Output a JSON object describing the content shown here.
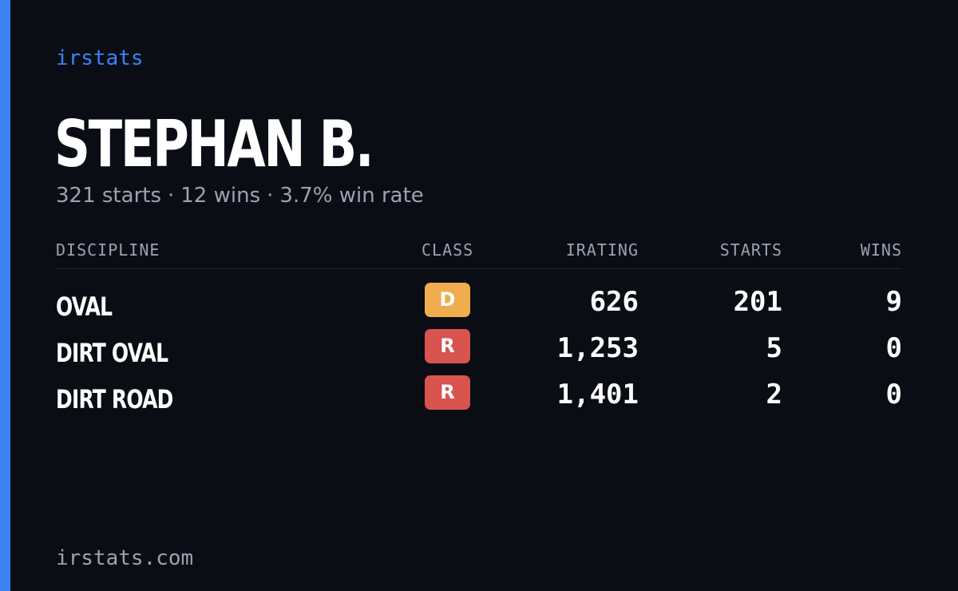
{
  "brand": "irstats",
  "player": {
    "name": "STEPHAN B.",
    "starts": "321 starts",
    "wins": "12 wins",
    "win_rate": "3.7% win rate",
    "separator": "·"
  },
  "table": {
    "headers": {
      "discipline": "DISCIPLINE",
      "class": "CLASS",
      "irating": "IRATING",
      "starts": "STARTS",
      "wins": "WINS"
    },
    "rows": [
      {
        "discipline": "OVAL",
        "class": "D",
        "class_color": "#f0ad4e",
        "irating": "626",
        "starts": "201",
        "wins": "9"
      },
      {
        "discipline": "DIRT OVAL",
        "class": "R",
        "class_color": "#d9534f",
        "irating": "1,253",
        "starts": "5",
        "wins": "0"
      },
      {
        "discipline": "DIRT ROAD",
        "class": "R",
        "class_color": "#d9534f",
        "irating": "1,401",
        "starts": "2",
        "wins": "0"
      }
    ]
  },
  "footer": "irstats.com",
  "colors": {
    "accent": "#3b82f6",
    "background": "#0a0d14",
    "muted_text": "#9aa3b2"
  }
}
